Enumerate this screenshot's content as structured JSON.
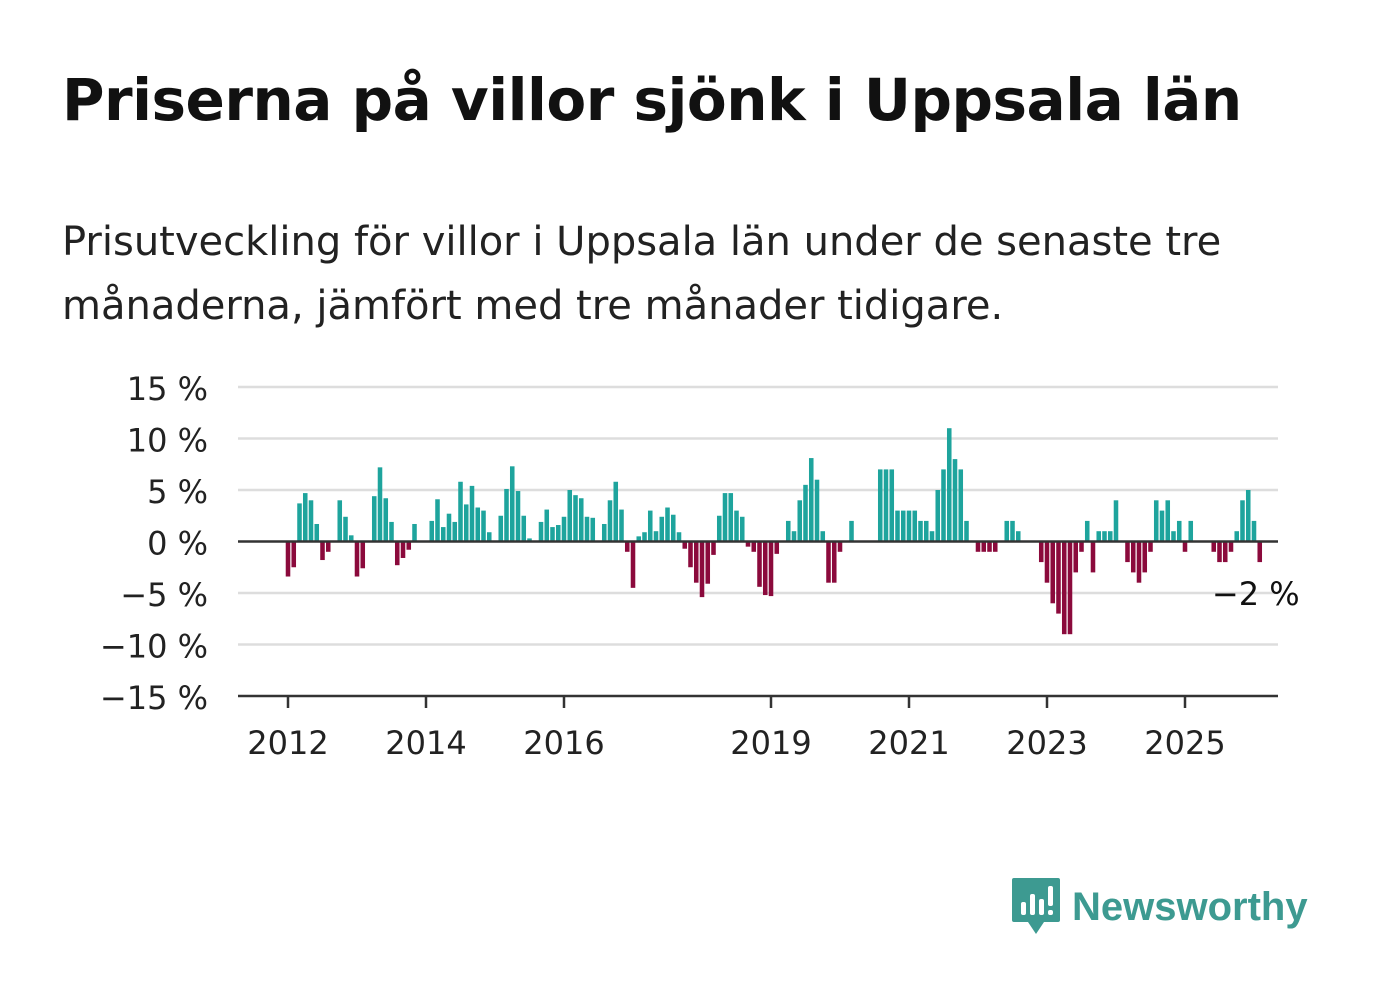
{
  "header": {
    "title": "Priserna på villor sjönk i Uppsala län",
    "subtitle": "Prisutveckling för villor i Uppsala län under de senaste tre månaderna, jämfört med tre månader tidigare."
  },
  "brand": {
    "name": "Newsworthy",
    "logo_icon": "bar-chart-speech-bubble-icon",
    "color": "#3d9a91"
  },
  "colors": {
    "positive": "#1ea49d",
    "negative": "#8b0a3c",
    "grid": "#dddddd",
    "axis": "#333333"
  },
  "chart_data": {
    "type": "bar",
    "title": "Priserna på villor sjönk i Uppsala län",
    "xlabel": "",
    "ylabel": "",
    "ylim": [
      -15,
      15
    ],
    "yticks": [
      15,
      10,
      5,
      0,
      -5,
      -10,
      -15
    ],
    "ytick_labels": [
      "15 %",
      "10 %",
      "5 %",
      "0 %",
      "−5 %",
      "−10 %",
      "−15 %"
    ],
    "x_start": "2012-01",
    "x_end": "2025-06",
    "xticks": [
      "2012",
      "2014",
      "2016",
      "2019",
      "2021",
      "2023",
      "2025"
    ],
    "annotation": {
      "text": "−2 %",
      "x": "2025-06",
      "y": -2
    },
    "grid": true,
    "values": [
      -3.4,
      -2.5,
      3.7,
      4.7,
      4.0,
      1.7,
      -1.8,
      -1.0,
      0.0,
      4.0,
      2.4,
      0.6,
      -3.4,
      -2.6,
      0.0,
      4.4,
      7.2,
      4.2,
      1.9,
      -2.3,
      -1.6,
      -0.8,
      1.7,
      0.0,
      0.0,
      2.0,
      4.1,
      1.4,
      2.7,
      1.9,
      5.8,
      3.6,
      5.4,
      3.3,
      3.0,
      0.9,
      0.0,
      2.5,
      5.1,
      7.3,
      4.9,
      2.5,
      0.3,
      0.0,
      1.9,
      3.1,
      1.4,
      1.6,
      2.4,
      5.0,
      4.5,
      4.2,
      2.4,
      2.3,
      0.0,
      1.7,
      4.0,
      5.8,
      3.1,
      -1.0,
      -4.5,
      0.5,
      0.9,
      3.0,
      1.0,
      2.4,
      3.3,
      2.6,
      0.9,
      -0.7,
      -2.5,
      -4.0,
      -5.4,
      -4.1,
      -1.3,
      2.5,
      4.7,
      4.7,
      3.0,
      2.4,
      -0.5,
      -1.0,
      -4.4,
      -5.2,
      -5.3,
      -1.2,
      0.0,
      2.0,
      1.0,
      4.0,
      5.5,
      8.1,
      6.0,
      1.0,
      -4.0,
      -4.0,
      -1.0,
      0.0,
      2.0,
      0.0,
      0.0,
      0.0,
      0.0,
      7.0,
      7.0,
      7.0,
      3.0,
      3.0,
      3.0,
      3.0,
      2.0,
      2.0,
      1.0,
      5.0,
      7.0,
      11.0,
      8.0,
      7.0,
      2.0,
      0.0,
      -1.0,
      -1.0,
      -1.0,
      -1.0,
      0.0,
      2.0,
      2.0,
      1.0,
      0.0,
      0.0,
      0.0,
      -2.0,
      -4.0,
      -6.0,
      -7.0,
      -9.0,
      -9.0,
      -3.0,
      -1.0,
      2.0,
      -3.0,
      1.0,
      1.0,
      1.0,
      4.0,
      0.0,
      -2.0,
      -3.0,
      -4.0,
      -3.0,
      -1.0,
      4.0,
      3.0,
      4.0,
      1.0,
      2.0,
      -1.0,
      2.0,
      0.0,
      0.0,
      0.0,
      -1.0,
      -2.0,
      -2.0,
      -1.0,
      1.0,
      4.0,
      5.0,
      2.0,
      -2.0
    ]
  }
}
